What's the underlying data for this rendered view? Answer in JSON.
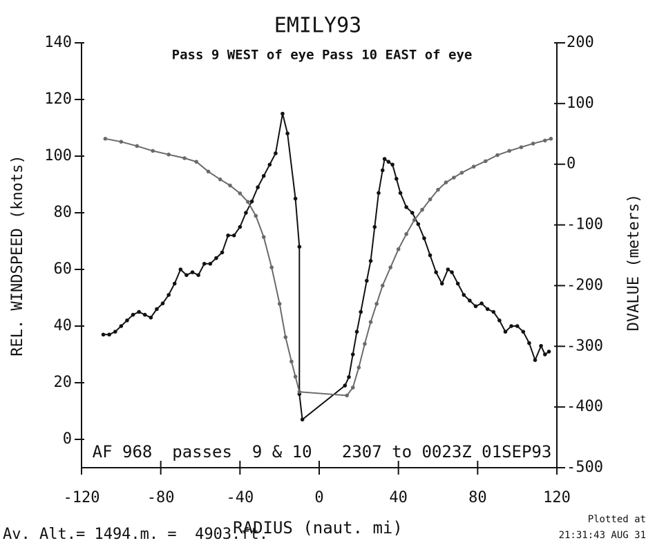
{
  "chart_data": {
    "type": "line",
    "title": "EMILY93",
    "subtitle": "Pass  9 WEST of eye Pass 10 EAST of eye",
    "annotation": "AF 968  passes  9 & 10   2307 to 0023Z 01SEP93",
    "x_label": "RADIUS (naut. mi)",
    "y_label": "REL. WINDSPEED (knots)",
    "y2_label": "DVALUE (meters)",
    "footer_left": "Av. Alt.= 1494.m. =  4903.ft.",
    "footer_right": [
      "Plotted at",
      "21:31:43 AUG 31"
    ],
    "xlim": [
      -120,
      120
    ],
    "xticks": [
      -120,
      -80,
      -40,
      0,
      40,
      80,
      120
    ],
    "ylim": [
      -10,
      140
    ],
    "yticks": [
      0,
      20,
      40,
      60,
      80,
      100,
      120,
      140
    ],
    "y2lim": [
      -500,
      200
    ],
    "y2ticks": [
      -500,
      -400,
      -300,
      -200,
      -100,
      0,
      100,
      200
    ],
    "series": [
      {
        "name": "REL. WINDSPEED",
        "color": "#111111",
        "x": [
          -109,
          -106,
          -103,
          -100,
          -97,
          -94,
          -91,
          -88,
          -85,
          -82,
          -79,
          -76,
          -73,
          -70,
          -67,
          -64,
          -61,
          -58,
          -55,
          -52,
          -49,
          -46,
          -43,
          -40,
          -37,
          -34,
          -31,
          -28,
          -25,
          -22,
          -18.5,
          -16,
          -12,
          -10,
          -10,
          -8.5,
          13,
          15,
          17,
          19,
          21,
          24,
          26,
          28,
          30,
          32,
          33,
          35,
          37,
          39,
          41,
          44,
          47,
          50,
          53,
          56,
          59,
          62,
          65,
          67,
          70,
          73,
          76,
          79,
          82,
          85,
          88,
          91,
          94,
          97,
          100,
          103,
          106,
          109,
          112,
          114,
          116
        ],
        "values": [
          37,
          37,
          38,
          40,
          42,
          44,
          45,
          44,
          43,
          46,
          48,
          51,
          55,
          60,
          58,
          59,
          58,
          62,
          62,
          64,
          66,
          72,
          72,
          75,
          80,
          84,
          89,
          93,
          97,
          101,
          115,
          108,
          85,
          68,
          16,
          7,
          19,
          22,
          30,
          38,
          45,
          56,
          63,
          75,
          87,
          95,
          99,
          98,
          97,
          92,
          87,
          82,
          80,
          76,
          71,
          65,
          59,
          55,
          60,
          59,
          55,
          51,
          49,
          47,
          48,
          46,
          45,
          42,
          38,
          40,
          40,
          38,
          34,
          28,
          33,
          30,
          31
        ]
      },
      {
        "name": "DVALUE",
        "color": "#6a6a6a",
        "axis": "y2",
        "x": [
          -108,
          -100,
          -92,
          -84,
          -76,
          -68,
          -62,
          -56,
          -50,
          -45,
          -40,
          -36,
          -32,
          -28,
          -24,
          -20,
          -17,
          -14,
          -12,
          -10,
          14,
          17,
          20,
          23,
          26,
          29,
          32,
          36,
          40,
          44,
          48,
          52,
          56,
          60,
          64,
          68,
          72,
          78,
          84,
          90,
          96,
          102,
          108,
          114,
          117
        ],
        "values": [
          42,
          37,
          30,
          22,
          16,
          10,
          4,
          -12,
          -25,
          -35,
          -48,
          -62,
          -85,
          -120,
          -170,
          -230,
          -285,
          -325,
          -350,
          -375,
          -381,
          -368,
          -335,
          -296,
          -260,
          -230,
          -200,
          -170,
          -140,
          -115,
          -92,
          -75,
          -58,
          -42,
          -30,
          -22,
          -14,
          -4,
          5,
          15,
          22,
          28,
          34,
          39,
          42
        ]
      }
    ]
  }
}
